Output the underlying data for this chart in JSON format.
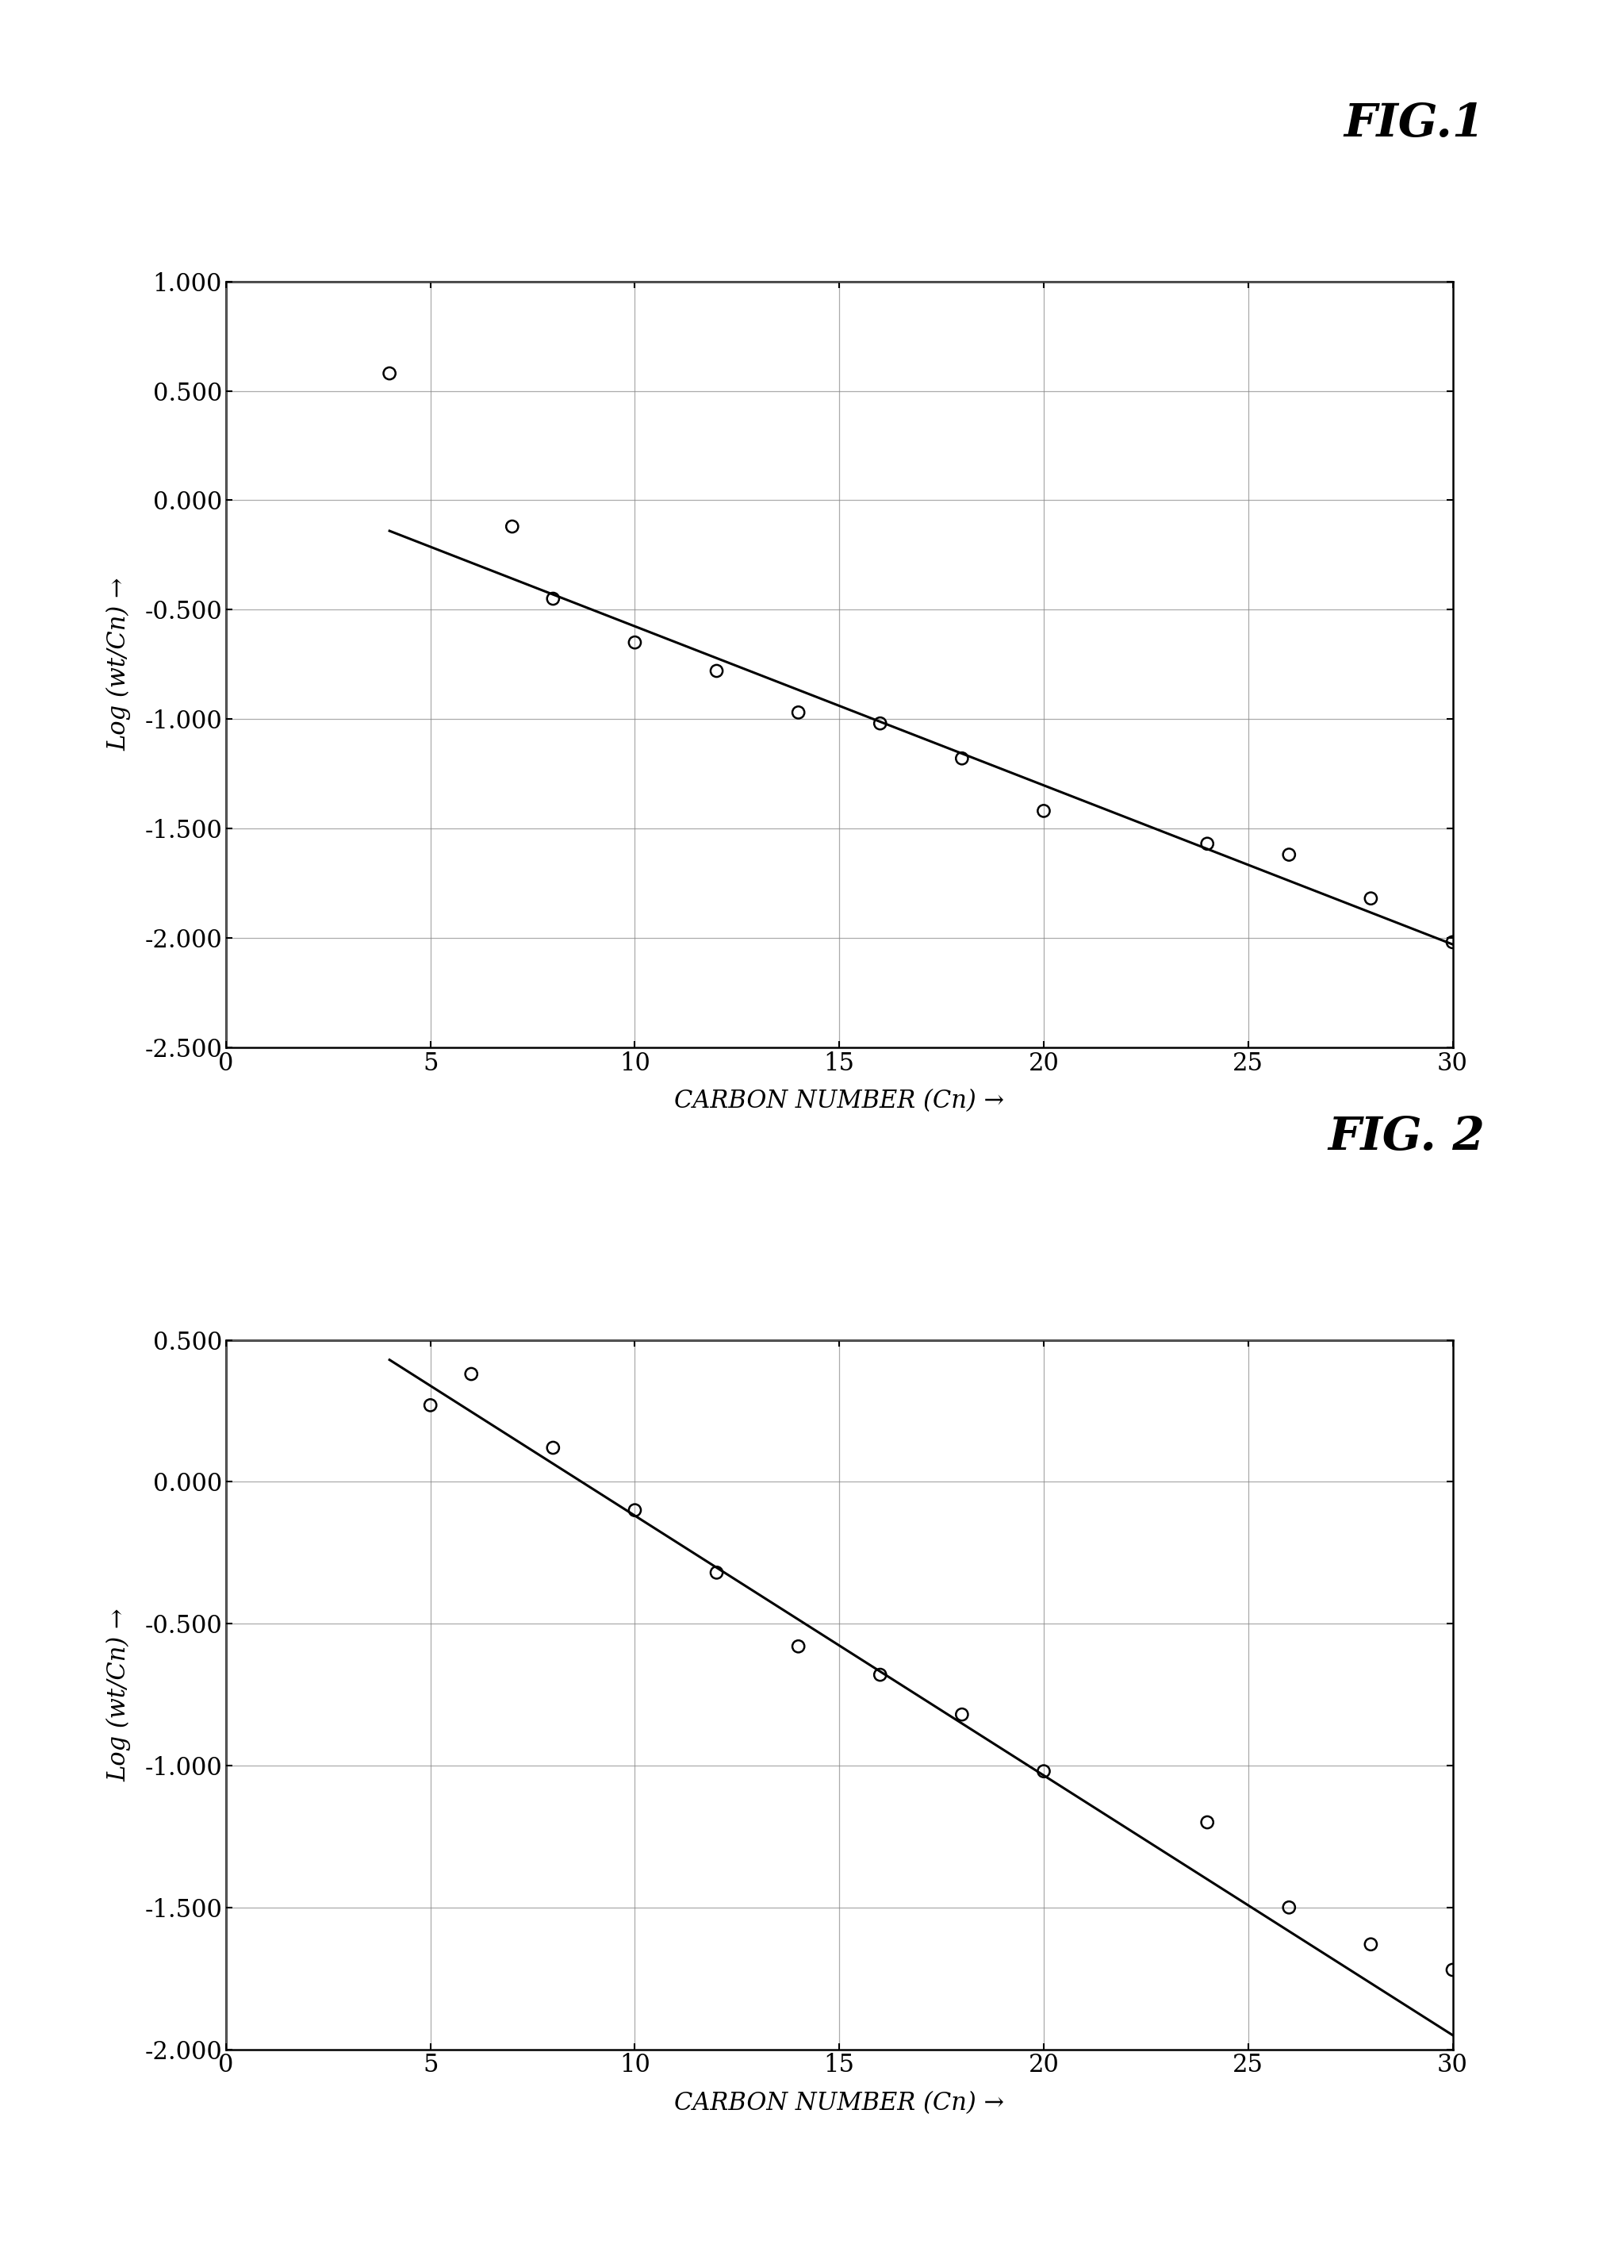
{
  "fig1": {
    "title": "FIG.1",
    "scatter_x": [
      4,
      7,
      8,
      10,
      12,
      14,
      16,
      18,
      20,
      24,
      26,
      28,
      30
    ],
    "scatter_y": [
      0.58,
      -0.12,
      -0.45,
      -0.65,
      -0.78,
      -0.97,
      -1.02,
      -1.18,
      -1.42,
      -1.57,
      -1.62,
      -1.82,
      -2.02
    ],
    "line_x": [
      4,
      30
    ],
    "line_y": [
      -0.14,
      -2.03
    ],
    "xlim": [
      0,
      30
    ],
    "ylim": [
      -2.5,
      1.0
    ],
    "xticks": [
      0,
      5,
      10,
      15,
      20,
      25,
      30
    ],
    "yticks": [
      -2.5,
      -2.0,
      -1.5,
      -1.0,
      -0.5,
      0.0,
      0.5,
      1.0
    ],
    "ytick_labels": [
      "-2.500",
      "-2.000",
      "-1.500",
      "-1.000",
      "-0.500",
      "0.000",
      "0.500",
      "1.000"
    ],
    "xlabel": "CARBON NUMBER (Cn) →",
    "ylabel": "Log (wt/Cn) →"
  },
  "fig2": {
    "title": "FIG. 2",
    "scatter_x": [
      5,
      6,
      8,
      10,
      12,
      14,
      16,
      18,
      20,
      24,
      26,
      28,
      30
    ],
    "scatter_y": [
      0.27,
      0.38,
      0.12,
      -0.1,
      -0.32,
      -0.58,
      -0.68,
      -0.82,
      -1.02,
      -1.2,
      -1.5,
      -1.63,
      -1.72
    ],
    "line_x": [
      4,
      30
    ],
    "line_y": [
      0.43,
      -1.95
    ],
    "xlim": [
      0,
      30
    ],
    "ylim": [
      -2.0,
      0.5
    ],
    "xticks": [
      0,
      5,
      10,
      15,
      20,
      25,
      30
    ],
    "yticks": [
      -2.0,
      -1.5,
      -1.0,
      -0.5,
      0.0,
      0.5
    ],
    "ytick_labels": [
      "-2.000",
      "-1.500",
      "-1.000",
      "-0.500",
      "0.000",
      "0.500"
    ],
    "xlabel": "CARBON NUMBER (Cn) →",
    "ylabel": "Log (wt/Cn) →"
  },
  "background_color": "#ffffff",
  "line_color": "#000000",
  "scatter_color": "#000000",
  "grid_color": "#888888",
  "scatter_size": 120,
  "line_width": 2.2,
  "font_family": "serif",
  "title_fontsize": 42,
  "tick_fontsize": 22,
  "label_fontsize": 22
}
